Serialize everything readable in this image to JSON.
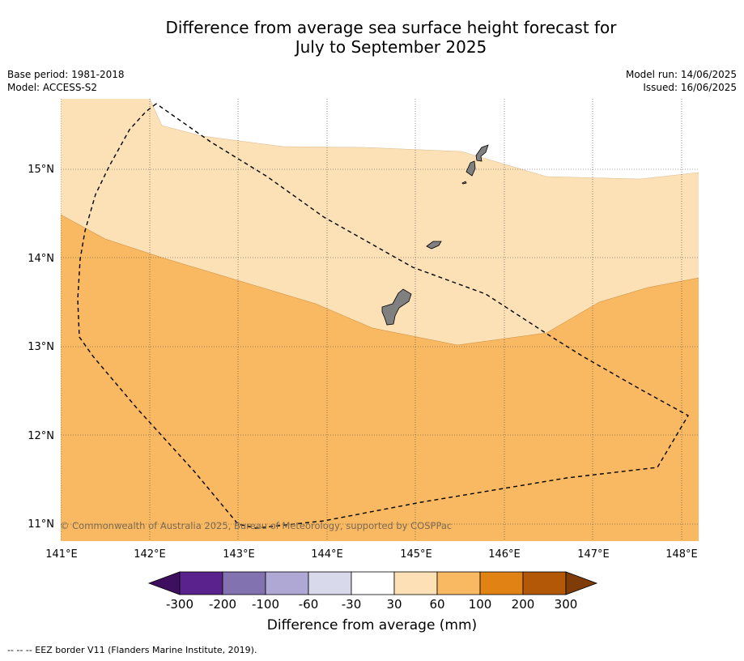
{
  "title_line1": "Difference from average sea surface height forecast for",
  "title_line2": "July to September 2025",
  "meta_left": [
    "Base period: 1981-2018",
    "Model: ACCESS-S2"
  ],
  "meta_right": [
    "Model run: 14/06/2025",
    "Issued: 16/06/2025"
  ],
  "lon_labels": [
    "141°E",
    "142°E",
    "143°E",
    "144°E",
    "145°E",
    "146°E",
    "147°E",
    "148°E"
  ],
  "lat_labels": [
    "15°N",
    "14°N",
    "13°N",
    "12°N",
    "11°N"
  ],
  "copyright": "© Commonwealth of Australia 2025, Bureau of Meteorology, supported by COSPPac",
  "colorbar": {
    "ticks": [
      "-300",
      "-200",
      "-100",
      "-60",
      "-30",
      "30",
      "60",
      "100",
      "200",
      "300"
    ],
    "colors": [
      "#3d0f5e",
      "#5a228c",
      "#8272b0",
      "#b0a8d4",
      "#d9d9ec",
      "#ffffff",
      "#fde0b5",
      "#f9b862",
      "#e08214",
      "#b35806",
      "#7f3b08"
    ],
    "label": "Difference from average (mm)"
  },
  "footnote": "--  --  -- EEZ border V11 (Flanders Marine Institute, 2019).",
  "fill_colors": {
    "light": "#fce0b6",
    "medium": "#f9b862"
  }
}
